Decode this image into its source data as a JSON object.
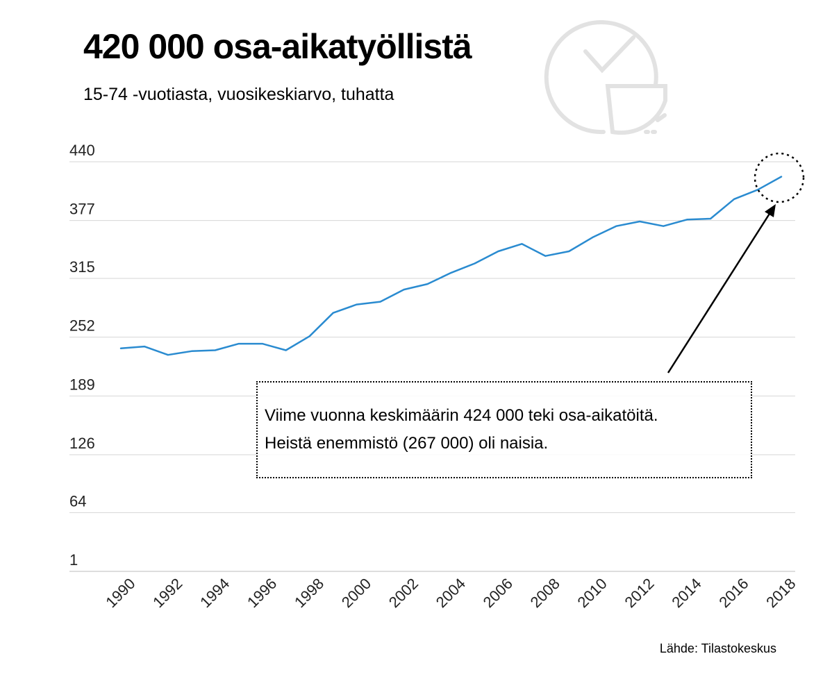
{
  "title": "420 000 osa-aikatyöllistä",
  "subtitle": "15-74 -vuotiasta, vuosikeskiarvo, tuhatta",
  "source": "Lähde: Tilastokeskus",
  "annotation": {
    "line1": "Viime vuonna keskimäärin 424 000 teki osa-aikatöitä.",
    "line2": "Heistä enemmistö (267 000) oli naisia."
  },
  "icon": "pie-chart-check-icon",
  "colors": {
    "line": "#2a8bd0",
    "grid": "#d6d6d6",
    "icon": "#e2e2e2"
  },
  "chart_data": {
    "type": "line",
    "title": "420 000 osa-aikatyöllistä",
    "subtitle": "15-74 -vuotiasta, vuosikeskiarvo, tuhatta",
    "xlabel": "",
    "ylabel": "",
    "ylim": [
      1,
      440
    ],
    "yticks": [
      1,
      64,
      126,
      189,
      252,
      315,
      377,
      440
    ],
    "xticks": [
      1990,
      1992,
      1994,
      1996,
      1998,
      2000,
      2002,
      2004,
      2006,
      2008,
      2010,
      2012,
      2014,
      2016,
      2018
    ],
    "grid": true,
    "series": [
      {
        "x": [
          1990,
          1991,
          1992,
          1993,
          1994,
          1995,
          1996,
          1997,
          1998,
          1999,
          2000,
          2001,
          2002,
          2003,
          2004,
          2005,
          2006,
          2007,
          2008,
          2009,
          2010,
          2011,
          2012,
          2013,
          2014,
          2015,
          2016,
          2017,
          2018
        ],
        "values": [
          240,
          242,
          233,
          237,
          238,
          245,
          245,
          238,
          253,
          278,
          287,
          290,
          303,
          309,
          321,
          331,
          344,
          352,
          339,
          344,
          359,
          371,
          376,
          371,
          378,
          379,
          400,
          410,
          424
        ]
      }
    ]
  }
}
